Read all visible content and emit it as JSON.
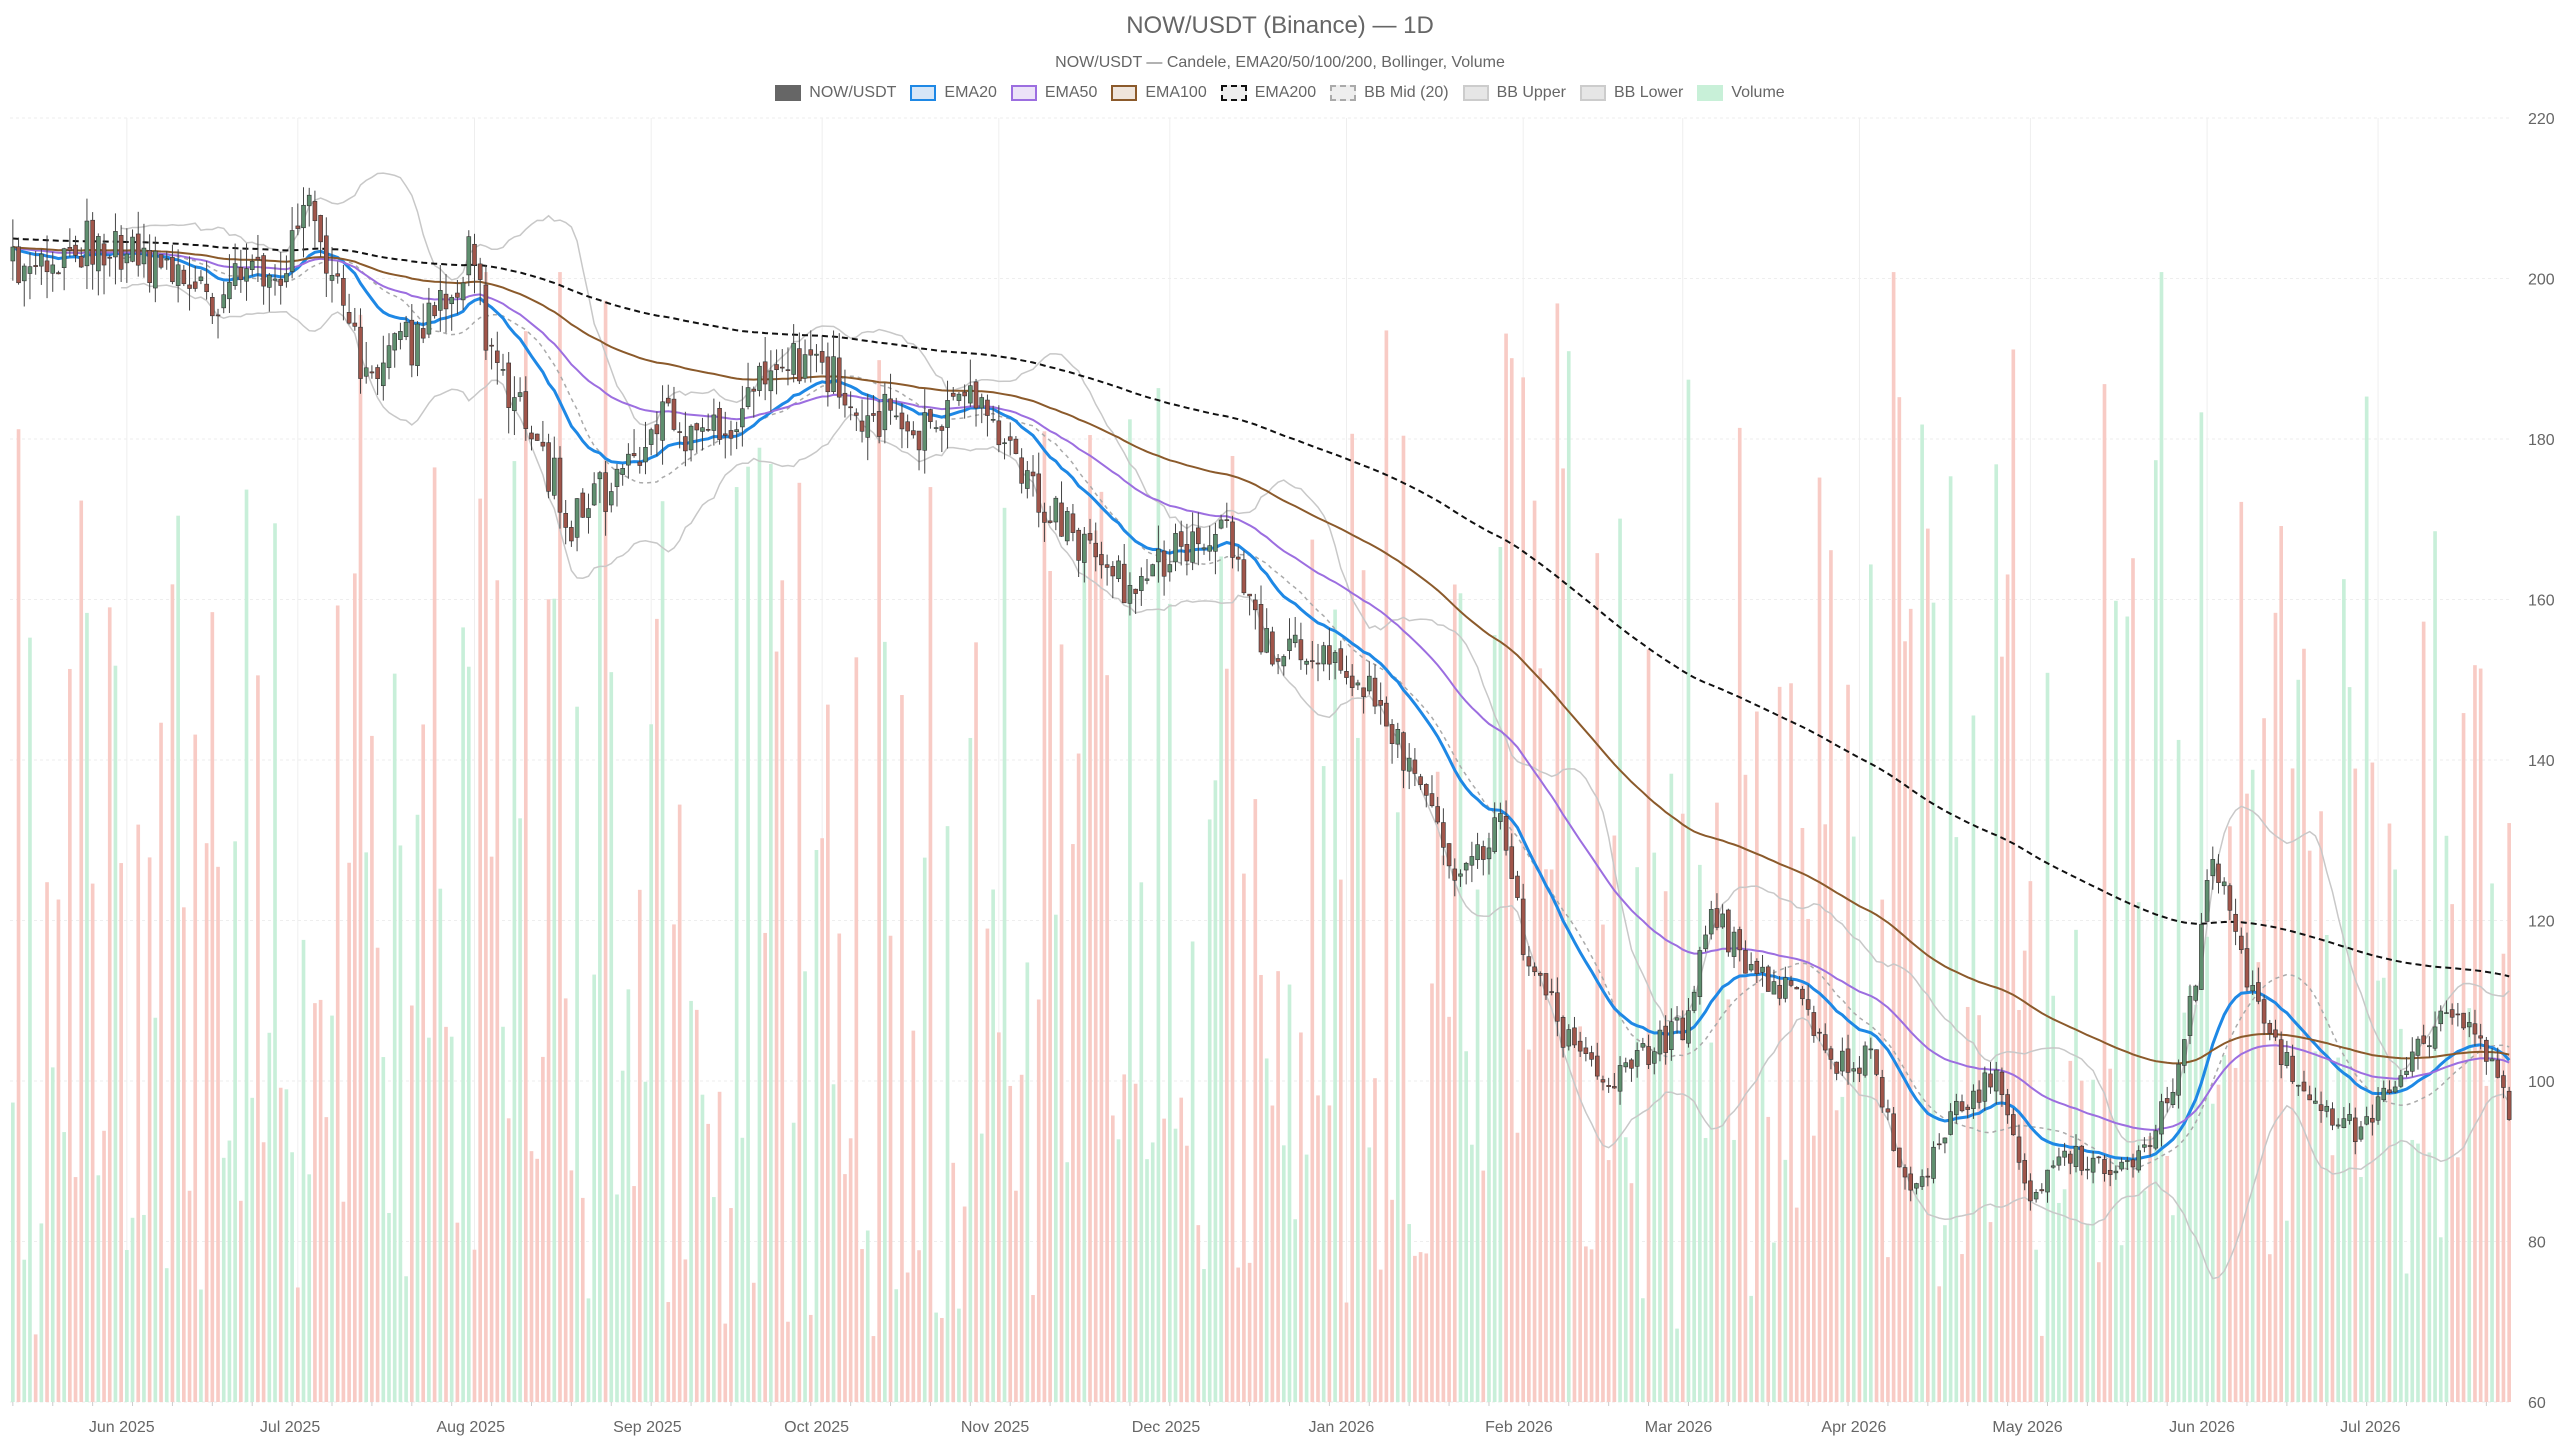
{
  "header": {
    "title": "NOW/USDT (Binance) — 1D",
    "subtitle": "NOW/USDT — Candele, EMA20/50/100/200, Bollinger, Volume"
  },
  "legend": [
    {
      "label": "NOW/USDT",
      "icon": "candle-swatch-icon",
      "fill": "#666666",
      "stroke": "#666666",
      "dash": false
    },
    {
      "label": "EMA20",
      "icon": "ema20-swatch-icon",
      "fill": "#d6e6f7",
      "stroke": "#1e88e5",
      "dash": false
    },
    {
      "label": "EMA50",
      "icon": "ema50-swatch-icon",
      "fill": "#ece3f8",
      "stroke": "#9c6ee0",
      "dash": false
    },
    {
      "label": "EMA100",
      "icon": "ema100-swatch-icon",
      "fill": "#efe5dc",
      "stroke": "#8b5a2b",
      "dash": false
    },
    {
      "label": "EMA200",
      "icon": "ema200-swatch-icon",
      "fill": "#eeeeee",
      "stroke": "#111111",
      "dash": true
    },
    {
      "label": "BB Mid (20)",
      "icon": "bb-mid-swatch-icon",
      "fill": "#eeeeee",
      "stroke": "#aaaaaa",
      "dash": true
    },
    {
      "label": "BB Upper",
      "icon": "bb-upper-swatch-icon",
      "fill": "#e6e6e6",
      "stroke": "#cccccc",
      "dash": false
    },
    {
      "label": "BB Lower",
      "icon": "bb-lower-swatch-icon",
      "fill": "#e6e6e6",
      "stroke": "#cccccc",
      "dash": false
    },
    {
      "label": "Volume",
      "icon": "volume-swatch-icon",
      "fill": "#c8f0d8",
      "stroke": "#c8f0d8",
      "dash": false
    }
  ],
  "colors": {
    "up": "#5f8f6f",
    "down": "#a0554a",
    "volume_up": "#c8efd9",
    "volume_down": "#f8cbc5",
    "ema20": "#1e88e5",
    "ema50": "#9c6ee0",
    "ema100": "#8b5a2b",
    "ema200": "#111111",
    "bb_mid": "#aaaaaa",
    "bb_band": "#c8c8c8",
    "grid": "#eeeeee"
  },
  "chart_data": {
    "type": "candlestick",
    "x_start": "2025-05-12",
    "x_end": "2026-07-24",
    "ylim": [
      60,
      220
    ],
    "y_ticks": [
      60,
      80,
      100,
      120,
      140,
      160,
      180,
      200,
      220
    ],
    "y_axis_side": "right",
    "grid": true,
    "legend_position": "top-center",
    "x_ticks": [
      {
        "label": "Jun 2025",
        "date": "2025-06-01"
      },
      {
        "label": "Jul 2025",
        "date": "2025-07-01"
      },
      {
        "label": "Aug 2025",
        "date": "2025-08-01"
      },
      {
        "label": "Sep 2025",
        "date": "2025-09-01"
      },
      {
        "label": "Oct 2025",
        "date": "2025-10-01"
      },
      {
        "label": "Nov 2025",
        "date": "2025-11-01"
      },
      {
        "label": "Dec 2025",
        "date": "2025-12-01"
      },
      {
        "label": "Jan 2026",
        "date": "2026-01-01"
      },
      {
        "label": "Feb 2026",
        "date": "2026-02-01"
      },
      {
        "label": "Mar 2026",
        "date": "2026-03-01"
      },
      {
        "label": "Apr 2026",
        "date": "2026-04-01"
      },
      {
        "label": "May 2026",
        "date": "2026-05-01"
      },
      {
        "label": "Jun 2026",
        "date": "2026-06-01"
      },
      {
        "label": "Jul 2026",
        "date": "2026-07-01"
      }
    ],
    "close_path": [
      {
        "date": "2025-05-12",
        "price": 202
      },
      {
        "date": "2025-05-25",
        "price": 204
      },
      {
        "date": "2025-06-05",
        "price": 203
      },
      {
        "date": "2025-06-15",
        "price": 198
      },
      {
        "date": "2025-06-25",
        "price": 200
      },
      {
        "date": "2025-07-03",
        "price": 207
      },
      {
        "date": "2025-07-08",
        "price": 202
      },
      {
        "date": "2025-07-12",
        "price": 188
      },
      {
        "date": "2025-07-20",
        "price": 192
      },
      {
        "date": "2025-07-27",
        "price": 196
      },
      {
        "date": "2025-08-01",
        "price": 205
      },
      {
        "date": "2025-08-03",
        "price": 190
      },
      {
        "date": "2025-08-10",
        "price": 183
      },
      {
        "date": "2025-08-18",
        "price": 170
      },
      {
        "date": "2025-08-28",
        "price": 176
      },
      {
        "date": "2025-09-02",
        "price": 183
      },
      {
        "date": "2025-09-12",
        "price": 180
      },
      {
        "date": "2025-09-22",
        "price": 188
      },
      {
        "date": "2025-10-01",
        "price": 190
      },
      {
        "date": "2025-10-08",
        "price": 184
      },
      {
        "date": "2025-10-18",
        "price": 180
      },
      {
        "date": "2025-10-26",
        "price": 184
      },
      {
        "date": "2025-11-01",
        "price": 182
      },
      {
        "date": "2025-11-05",
        "price": 175
      },
      {
        "date": "2025-11-15",
        "price": 167
      },
      {
        "date": "2025-11-22",
        "price": 162
      },
      {
        "date": "2025-11-30",
        "price": 164
      },
      {
        "date": "2025-12-10",
        "price": 171
      },
      {
        "date": "2025-12-18",
        "price": 154
      },
      {
        "date": "2025-12-28",
        "price": 152
      },
      {
        "date": "2026-01-05",
        "price": 148
      },
      {
        "date": "2026-01-12",
        "price": 140
      },
      {
        "date": "2026-01-20",
        "price": 126
      },
      {
        "date": "2026-01-28",
        "price": 132
      },
      {
        "date": "2026-02-01",
        "price": 117
      },
      {
        "date": "2026-02-08",
        "price": 106
      },
      {
        "date": "2026-02-15",
        "price": 99
      },
      {
        "date": "2026-02-22",
        "price": 103
      },
      {
        "date": "2026-03-01",
        "price": 107
      },
      {
        "date": "2026-03-06",
        "price": 121
      },
      {
        "date": "2026-03-12",
        "price": 115
      },
      {
        "date": "2026-03-20",
        "price": 111
      },
      {
        "date": "2026-03-28",
        "price": 102
      },
      {
        "date": "2026-04-03",
        "price": 103
      },
      {
        "date": "2026-04-10",
        "price": 85
      },
      {
        "date": "2026-04-18",
        "price": 96
      },
      {
        "date": "2026-04-25",
        "price": 101
      },
      {
        "date": "2026-05-01",
        "price": 85
      },
      {
        "date": "2026-05-08",
        "price": 91
      },
      {
        "date": "2026-05-15",
        "price": 89
      },
      {
        "date": "2026-05-22",
        "price": 92
      },
      {
        "date": "2026-05-28",
        "price": 104
      },
      {
        "date": "2026-06-02",
        "price": 128
      },
      {
        "date": "2026-06-06",
        "price": 118
      },
      {
        "date": "2026-06-12",
        "price": 105
      },
      {
        "date": "2026-06-20",
        "price": 98
      },
      {
        "date": "2026-06-28",
        "price": 93
      },
      {
        "date": "2026-07-05",
        "price": 101
      },
      {
        "date": "2026-07-12",
        "price": 108
      },
      {
        "date": "2026-07-18",
        "price": 106
      },
      {
        "date": "2026-07-24",
        "price": 96
      }
    ],
    "volume_range": [
      0,
      0.45
    ],
    "series": [
      {
        "name": "NOW/USDT",
        "kind": "candle"
      },
      {
        "name": "EMA20",
        "kind": "ema",
        "period": 20
      },
      {
        "name": "EMA50",
        "kind": "ema",
        "period": 50
      },
      {
        "name": "EMA100",
        "kind": "ema",
        "period": 100
      },
      {
        "name": "EMA200",
        "kind": "ema",
        "period": 200,
        "seed_price": 205
      },
      {
        "name": "BB Mid (20)",
        "kind": "sma",
        "period": 20
      },
      {
        "name": "BB Upper",
        "kind": "bollinger",
        "period": 20,
        "k": 2
      },
      {
        "name": "BB Lower",
        "kind": "bollinger",
        "period": 20,
        "k": -2
      },
      {
        "name": "Volume",
        "kind": "volume"
      }
    ]
  }
}
